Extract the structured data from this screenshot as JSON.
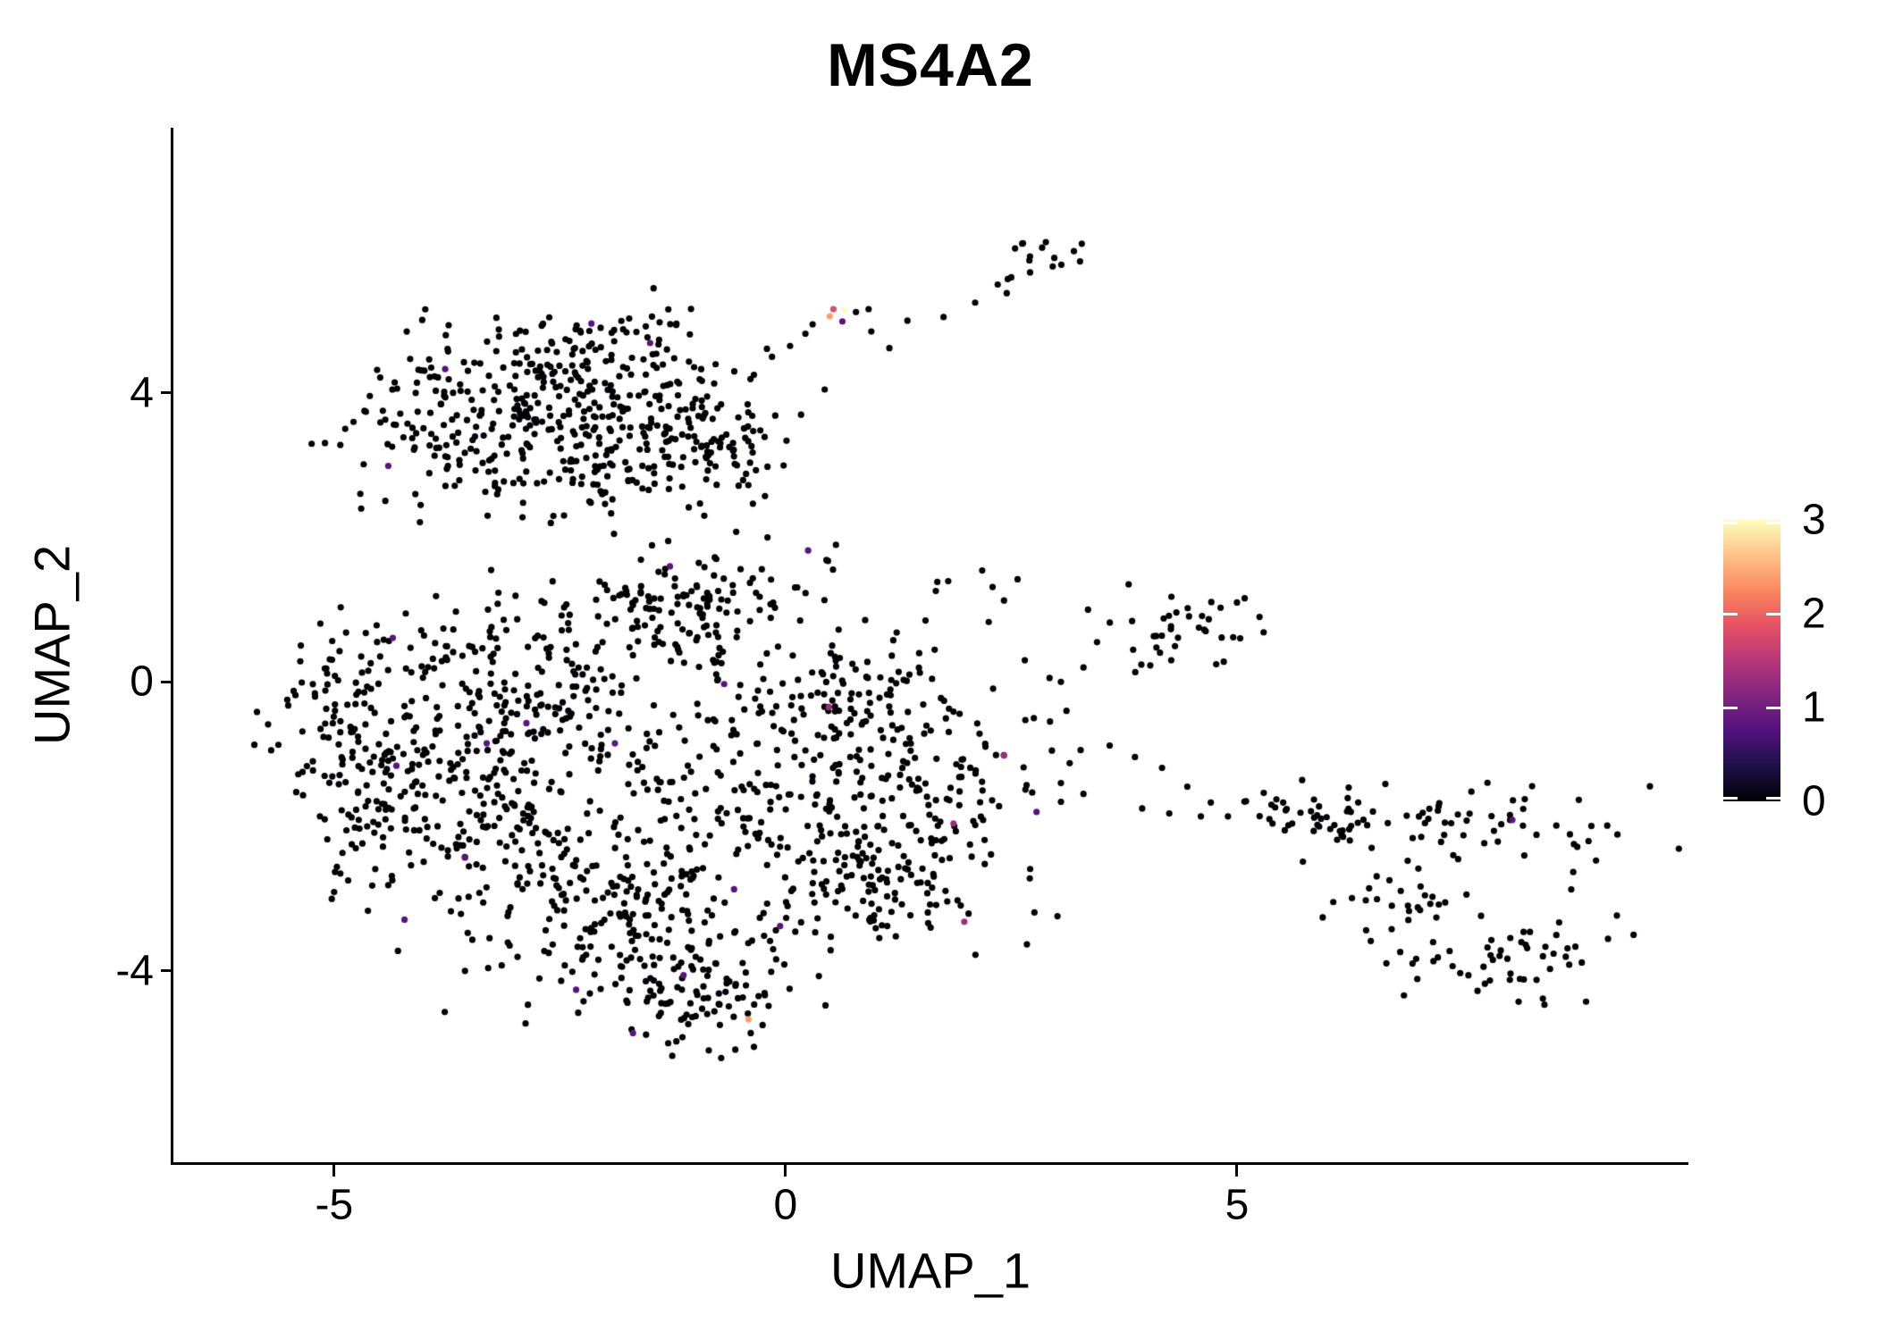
{
  "chart_data": {
    "type": "scatter",
    "title": "MS4A2",
    "x_axis": {
      "label": "UMAP_1",
      "ticks": [
        "-5",
        "0",
        "5"
      ],
      "tick_values": [
        -5,
        0,
        5
      ],
      "range": [
        -6.78,
        9.99
      ]
    },
    "y_axis": {
      "label": "UMAP_2",
      "ticks": [
        "-4",
        "0",
        "4"
      ],
      "tick_values": [
        -4,
        0,
        4
      ],
      "range": [
        -6.66,
        7.67
      ]
    },
    "legend": {
      "ticks": [
        "0",
        "1",
        "2",
        "3"
      ],
      "tick_values": [
        0,
        1,
        2,
        3
      ],
      "max_value": 3,
      "gradient_stops": [
        {
          "t": 0.0,
          "color": "#000004"
        },
        {
          "t": 0.125,
          "color": "#1d1147"
        },
        {
          "t": 0.25,
          "color": "#51127c"
        },
        {
          "t": 0.375,
          "color": "#822681"
        },
        {
          "t": 0.5,
          "color": "#b73779"
        },
        {
          "t": 0.625,
          "color": "#e75263"
        },
        {
          "t": 0.75,
          "color": "#fb8861"
        },
        {
          "t": 0.875,
          "color": "#fec287"
        },
        {
          "t": 1.0,
          "color": "#fcfdbf"
        }
      ]
    },
    "point_radius_px": 3.6,
    "zero_expression_color": "#000004",
    "seed": 42,
    "clusters": [
      {
        "id": "topleft-1",
        "center": [
          -3.55,
          3.85
        ],
        "sigma": [
          0.75,
          0.5
        ],
        "n": 140
      },
      {
        "id": "topleft-2",
        "center": [
          -2.2,
          4.15
        ],
        "sigma": [
          0.65,
          0.45
        ],
        "n": 130
      },
      {
        "id": "topleft-3",
        "center": [
          -1.45,
          3.35
        ],
        "sigma": [
          0.55,
          0.5
        ],
        "n": 100
      },
      {
        "id": "topleft-4",
        "center": [
          -2.9,
          2.95
        ],
        "sigma": [
          0.85,
          0.3
        ],
        "n": 80
      },
      {
        "id": "topleft-5",
        "center": [
          -0.65,
          3.3
        ],
        "sigma": [
          0.4,
          0.45
        ],
        "n": 55
      },
      {
        "id": "topleft-6",
        "center": [
          -2.0,
          4.8
        ],
        "sigma": [
          0.8,
          0.18
        ],
        "n": 30
      },
      {
        "id": "top-small",
        "center": [
          2.8,
          5.9
        ],
        "sigma": [
          0.22,
          0.18
        ],
        "n": 15
      },
      {
        "id": "mid-right",
        "center": [
          4.4,
          0.75
        ],
        "sigma": [
          0.4,
          0.28
        ],
        "n": 36
      },
      {
        "id": "center-1",
        "center": [
          -0.9,
          0.95
        ],
        "sigma": [
          0.7,
          0.45
        ],
        "n": 150
      },
      {
        "id": "center-2",
        "center": [
          -3.0,
          0.1
        ],
        "sigma": [
          0.85,
          0.55
        ],
        "n": 170
      },
      {
        "id": "center-3",
        "center": [
          -4.5,
          -1.2
        ],
        "sigma": [
          0.5,
          0.85
        ],
        "n": 140
      },
      {
        "id": "center-4",
        "center": [
          -3.2,
          -1.8
        ],
        "sigma": [
          0.75,
          0.75
        ],
        "n": 190
      },
      {
        "id": "center-5",
        "center": [
          -1.6,
          -3.3
        ],
        "sigma": [
          0.85,
          0.65
        ],
        "n": 210
      },
      {
        "id": "center-6",
        "center": [
          -0.9,
          -4.35
        ],
        "sigma": [
          0.5,
          0.3
        ],
        "n": 65
      },
      {
        "id": "center-7",
        "center": [
          -0.6,
          -1.4
        ],
        "sigma": [
          0.75,
          0.75
        ],
        "n": 120
      },
      {
        "id": "center-8",
        "center": [
          1.3,
          -1.6
        ],
        "sigma": [
          0.7,
          0.75
        ],
        "n": 210
      },
      {
        "id": "center-9",
        "center": [
          0.55,
          -0.1
        ],
        "sigma": [
          0.55,
          0.4
        ],
        "n": 85
      },
      {
        "id": "center-10",
        "center": [
          0.9,
          -3.0
        ],
        "sigma": [
          0.55,
          0.35
        ],
        "n": 75
      },
      {
        "id": "center-11",
        "center": [
          -5.1,
          -0.4
        ],
        "sigma": [
          0.3,
          0.5
        ],
        "n": 40
      },
      {
        "id": "center-12",
        "center": [
          2.0,
          1.25
        ],
        "sigma": [
          0.25,
          0.2
        ],
        "n": 8
      },
      {
        "id": "right-1",
        "center": [
          5.95,
          -1.8
        ],
        "sigma": [
          0.5,
          0.18
        ],
        "n": 40
      },
      {
        "id": "right-2",
        "center": [
          7.3,
          -2.0
        ],
        "sigma": [
          0.6,
          0.25
        ],
        "n": 50
      },
      {
        "id": "right-3",
        "center": [
          7.0,
          -2.9
        ],
        "sigma": [
          0.3,
          0.3
        ],
        "n": 25
      },
      {
        "id": "right-4",
        "center": [
          7.9,
          -3.85
        ],
        "sigma": [
          0.6,
          0.3
        ],
        "n": 55
      },
      {
        "id": "right-5",
        "center": [
          8.9,
          -2.3
        ],
        "sigma": [
          0.28,
          0.4
        ],
        "n": 14
      }
    ],
    "voids": [
      {
        "center": [
          0.0,
          0.5
        ],
        "radius": 0.5,
        "drop": 0.8
      }
    ],
    "extra_points": [
      [
        -0.35,
        4.25
      ],
      [
        -0.15,
        4.5
      ],
      [
        0.05,
        4.65
      ],
      [
        0.22,
        4.82
      ],
      [
        0.3,
        4.95
      ],
      [
        0.78,
        5.12
      ],
      [
        0.92,
        5.16
      ],
      [
        0.95,
        4.85
      ],
      [
        1.15,
        4.62
      ],
      [
        1.35,
        5.0
      ],
      [
        1.75,
        5.05
      ],
      [
        2.1,
        5.25
      ],
      [
        2.35,
        5.5
      ],
      [
        2.45,
        5.38
      ],
      [
        2.5,
        5.6
      ],
      [
        -2.6,
        2.2
      ],
      [
        -1.9,
        2.05
      ],
      [
        -3.3,
        2.3
      ],
      [
        -0.9,
        2.3
      ],
      [
        -4.1,
        2.6
      ],
      [
        -0.2,
        2.0
      ],
      [
        -1.3,
        1.95
      ],
      [
        -4.7,
        2.4
      ],
      [
        3.35,
        1.0
      ],
      [
        3.45,
        0.55
      ],
      [
        3.8,
        1.35
      ],
      [
        5.0,
        1.1
      ],
      [
        3.3,
        0.2
      ],
      [
        5.25,
        0.9
      ],
      [
        3.59,
        -0.88
      ],
      [
        3.87,
        -1.04
      ],
      [
        4.17,
        -1.19
      ],
      [
        4.45,
        -1.45
      ],
      [
        3.05,
        -1.4
      ],
      [
        3.3,
        -1.55
      ],
      [
        3.95,
        -1.75
      ],
      [
        4.25,
        -1.82
      ],
      [
        4.6,
        -1.86
      ],
      [
        4.9,
        -1.86
      ],
      [
        5.1,
        -1.65
      ],
      [
        2.75,
        -0.5
      ],
      [
        2.95,
        -0.95
      ],
      [
        2.65,
        0.3
      ],
      [
        3.05,
        0.0
      ],
      [
        1.55,
        0.85
      ],
      [
        -0.35,
        -5.05
      ],
      [
        -0.85,
        -5.1
      ],
      [
        -1.3,
        -5.0
      ]
    ],
    "expressing_cells": [
      {
        "x": 0.65,
        "y": 5.15,
        "value": 3.0
      },
      {
        "x": 0.53,
        "y": 5.16,
        "value": 1.8
      },
      {
        "x": 0.49,
        "y": 5.06,
        "value": 2.4
      },
      {
        "x": -0.41,
        "y": -4.67,
        "value": 2.4
      },
      {
        "x": 0.63,
        "y": 4.99,
        "value": 0.8
      },
      {
        "x": -2.15,
        "y": 4.96,
        "value": 0.8
      },
      {
        "x": -1.5,
        "y": 4.69,
        "value": 0.8
      },
      {
        "x": -3.77,
        "y": 4.33,
        "value": 0.8
      },
      {
        "x": -4.4,
        "y": 2.99,
        "value": 0.8
      },
      {
        "x": 0.25,
        "y": 1.82,
        "value": 0.8
      },
      {
        "x": -1.28,
        "y": 1.6,
        "value": 0.8
      },
      {
        "x": -4.35,
        "y": 0.61,
        "value": 0.8
      },
      {
        "x": -0.68,
        "y": -0.03,
        "value": 0.8
      },
      {
        "x": -2.87,
        "y": -0.57,
        "value": 0.8
      },
      {
        "x": -3.31,
        "y": -0.85,
        "value": 0.8
      },
      {
        "x": -4.31,
        "y": -1.16,
        "value": 0.8
      },
      {
        "x": -1.89,
        "y": -0.85,
        "value": 0.8
      },
      {
        "x": -3.55,
        "y": -2.43,
        "value": 0.8
      },
      {
        "x": 2.78,
        "y": -1.8,
        "value": 0.8
      },
      {
        "x": -0.57,
        "y": -2.87,
        "value": 0.8
      },
      {
        "x": -4.22,
        "y": -3.29,
        "value": 0.8
      },
      {
        "x": -0.06,
        "y": -3.38,
        "value": 0.8
      },
      {
        "x": -2.32,
        "y": -4.26,
        "value": 0.8
      },
      {
        "x": -1.13,
        "y": -4.06,
        "value": 0.8
      },
      {
        "x": -1.69,
        "y": -4.86,
        "value": 0.8
      },
      {
        "x": 8.05,
        "y": -1.91,
        "value": 0.8
      },
      {
        "x": 0.48,
        "y": -0.35,
        "value": 1.3
      },
      {
        "x": 2.42,
        "y": -1.02,
        "value": 1.3
      },
      {
        "x": 1.86,
        "y": -1.96,
        "value": 1.3
      },
      {
        "x": 1.98,
        "y": -3.32,
        "value": 1.3
      }
    ]
  }
}
